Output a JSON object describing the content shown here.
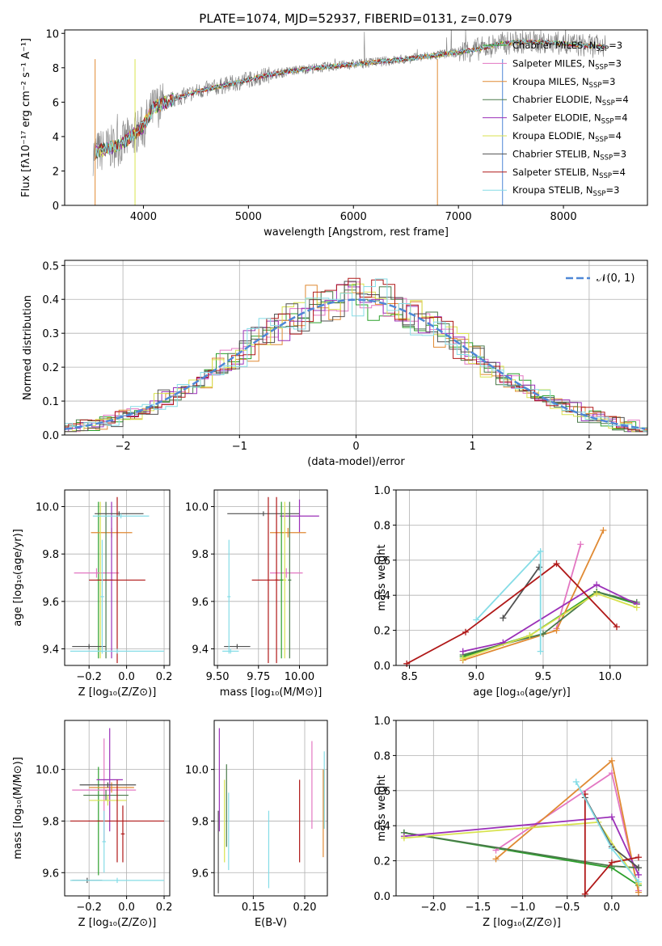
{
  "figure": {
    "title": "PLATE=1074, MJD=52937, FIBERID=0131, z=0.079",
    "colors": {
      "chabrier_miles": "#2ca02c",
      "salpeter_miles": "#e377c2",
      "kroupa_miles": "#e08a33",
      "chabrier_elodie": "#4a7a4a",
      "salpeter_elodie": "#9b30b8",
      "kroupa_elodie": "#d8e24f",
      "chabrier_stelib": "#505050",
      "salpeter_stelib": "#b01818",
      "kroupa_stelib": "#85dce6",
      "data": "#808080",
      "normal": "#4e87d6",
      "grid": "#b0b0b0"
    }
  },
  "chart_data": [
    {
      "id": "spectrum",
      "type": "line",
      "xlabel": "wavelength [Angstrom, rest frame]",
      "ylabel": "Flux [fλ10⁻¹⁷ erg cm⁻² s⁻¹ A⁻¹]",
      "xlim": [
        3250,
        8800
      ],
      "ylim": [
        0,
        10.2
      ],
      "xticks": [
        "4000",
        "5000",
        "6000",
        "7000",
        "8000"
      ],
      "yticks": [
        "0",
        "2",
        "4",
        "6",
        "8",
        "10"
      ],
      "grid": false,
      "legend_placement": "right",
      "continuum_x": [
        3520,
        3600,
        3800,
        4000,
        4100,
        4300,
        4500,
        5000,
        5200,
        5500,
        6000,
        6500,
        7000,
        7200,
        7400,
        7600,
        7800,
        8000,
        8200,
        8400
      ],
      "continuum_y": [
        3.0,
        3.2,
        3.6,
        4.6,
        5.7,
        6.2,
        6.6,
        7.3,
        7.6,
        7.9,
        8.2,
        8.5,
        8.9,
        9.1,
        9.4,
        9.5,
        9.5,
        9.4,
        9.3,
        9.2
      ],
      "legend": [
        {
          "name": "Chabrier MILES, N",
          "sub": "SSP",
          "suffix": "=3",
          "key": "chabrier_miles"
        },
        {
          "name": "Salpeter MILES, N",
          "sub": "SSP",
          "suffix": "=3",
          "key": "salpeter_miles"
        },
        {
          "name": "Kroupa MILES, N",
          "sub": "SSP",
          "suffix": "=3",
          "key": "kroupa_miles"
        },
        {
          "name": "Chabrier ELODIE, N",
          "sub": "SSP",
          "suffix": "=4",
          "key": "chabrier_elodie"
        },
        {
          "name": "Salpeter ELODIE, N",
          "sub": "SSP",
          "suffix": "=4",
          "key": "salpeter_elodie"
        },
        {
          "name": "Kroupa ELODIE, N",
          "sub": "SSP",
          "suffix": "=4",
          "key": "kroupa_elodie"
        },
        {
          "name": "Chabrier STELIB, N",
          "sub": "SSP",
          "suffix": "=3",
          "key": "chabrier_stelib"
        },
        {
          "name": "Salpeter STELIB, N",
          "sub": "SSP",
          "suffix": "=4",
          "key": "salpeter_stelib"
        },
        {
          "name": "Kroupa STELIB, N",
          "sub": "SSP",
          "suffix": "=3",
          "key": "kroupa_stelib"
        }
      ]
    },
    {
      "id": "residuals",
      "type": "line",
      "xlabel": "(data-model)/error",
      "ylabel": "Normed distribution",
      "xlim": [
        -2.5,
        2.5
      ],
      "ylim": [
        0,
        0.515
      ],
      "xticks": [
        "−2",
        "−1",
        "0",
        "1",
        "2"
      ],
      "yticks": [
        "0.0",
        "0.1",
        "0.2",
        "0.3",
        "0.4",
        "0.5"
      ],
      "grid": true,
      "legend_placement": "top-right",
      "legend_label": "𝒩(0, 1)",
      "normal": {
        "mean": 0,
        "sigma": 1
      }
    },
    {
      "id": "age_vs_Z",
      "type": "scatter",
      "xlabel": "Z [log₁₀(Z/Z⊙)]",
      "ylabel": "age  [log₁₀(age/yr)]",
      "xlim": [
        -0.33,
        0.23
      ],
      "ylim": [
        9.33,
        10.07
      ],
      "xticks": [
        "−0.2",
        "0.0",
        "0.2"
      ],
      "xtick_values": [
        -0.2,
        0.0,
        0.2
      ],
      "yticks": [
        "9.4",
        "9.6",
        "9.8",
        "10.0"
      ],
      "ytick_values": [
        9.4,
        9.6,
        9.8,
        10.0
      ],
      "grid": true,
      "points": [
        {
          "key": "chabrier_miles",
          "x": -0.15,
          "y": 9.69,
          "xe": 0.01,
          "ye": 0.33
        },
        {
          "key": "salpeter_miles",
          "x": -0.16,
          "y": 9.72,
          "xe": 0.12,
          "ye": 0.02
        },
        {
          "key": "kroupa_miles",
          "x": -0.08,
          "y": 9.89,
          "xe": 0.11,
          "ye": 0.02
        },
        {
          "key": "chabrier_elodie",
          "x": -0.11,
          "y": 9.69,
          "xe": 0.02,
          "ye": 0.33
        },
        {
          "key": "salpeter_elodie",
          "x": -0.08,
          "y": 9.69,
          "xe": 0.01,
          "ye": 0.33
        },
        {
          "key": "kroupa_elodie",
          "x": -0.14,
          "y": 9.69,
          "xe": 0.01,
          "ye": 0.33
        },
        {
          "key": "chabrier_stelib",
          "x": -0.04,
          "y": 9.97,
          "xe": 0.13,
          "ye": 0.01
        },
        {
          "key": "salpeter_stelib",
          "x": -0.05,
          "y": 9.69,
          "xe": 0.15,
          "ye": 0.35
        },
        {
          "key": "kroupa_stelib",
          "x": -0.05,
          "y": 9.39,
          "xe": 0.25,
          "ye": 0.01
        },
        {
          "key": "chabrier_stelib",
          "x": -0.2,
          "y": 9.41,
          "xe": 0.09,
          "ye": 0.01
        },
        {
          "key": "kroupa_stelib",
          "x": -0.03,
          "y": 9.96,
          "xe": 0.15,
          "ye": 0.01
        },
        {
          "key": "kroupa_stelib",
          "x": -0.13,
          "y": 9.62,
          "xe": 0.01,
          "ye": 0.24
        }
      ]
    },
    {
      "id": "age_vs_mass",
      "type": "scatter",
      "xlabel": "mass [log₁₀(M/M⊙)]",
      "ylabel": "",
      "xlim": [
        9.48,
        10.17
      ],
      "ylim": [
        9.33,
        10.07
      ],
      "xticks": [
        "9.50",
        "9.75",
        "10.00"
      ],
      "xtick_values": [
        9.5,
        9.75,
        10.0
      ],
      "yticks": [
        "9.4",
        "9.6",
        "9.8",
        "10.0"
      ],
      "ytick_values": [
        9.4,
        9.6,
        9.8,
        10.0
      ],
      "grid": true,
      "points": [
        {
          "key": "chabrier_stelib",
          "x": 9.78,
          "y": 9.97,
          "xe": 0.22,
          "ye": 0.01
        },
        {
          "key": "salpeter_elodie",
          "x": 10.0,
          "y": 9.96,
          "xe": 0.12,
          "ye": 0.07
        },
        {
          "key": "kroupa_miles",
          "x": 9.93,
          "y": 9.89,
          "xe": 0.11,
          "ye": 0.02
        },
        {
          "key": "salpeter_miles",
          "x": 9.92,
          "y": 9.72,
          "xe": 0.1,
          "ye": 0.02
        },
        {
          "key": "salpeter_stelib",
          "x": 9.81,
          "y": 9.69,
          "xe": 0.1,
          "ye": 0.35
        },
        {
          "key": "chabrier_miles",
          "x": 9.89,
          "y": 9.69,
          "xe": 0.01,
          "ye": 0.33
        },
        {
          "key": "kroupa_elodie",
          "x": 9.91,
          "y": 9.69,
          "xe": 0.01,
          "ye": 0.33
        },
        {
          "key": "chabrier_elodie",
          "x": 9.94,
          "y": 9.69,
          "xe": 0.01,
          "ye": 0.33
        },
        {
          "key": "chabrier_stelib",
          "x": 9.62,
          "y": 9.41,
          "xe": 0.08,
          "ye": 0.01
        },
        {
          "key": "kroupa_stelib",
          "x": 9.58,
          "y": 9.39,
          "xe": 0.05,
          "ye": 0.01
        },
        {
          "key": "kroupa_stelib",
          "x": 9.57,
          "y": 9.62,
          "xe": 0.01,
          "ye": 0.24
        },
        {
          "key": "salpeter_stelib",
          "x": 9.86,
          "y": 9.69,
          "xe": 0.01,
          "ye": 0.35
        }
      ]
    },
    {
      "id": "weight_vs_age",
      "type": "line",
      "xlabel": "age  [log₁₀(age/yr)]",
      "ylabel": "mass weight",
      "xlim": [
        8.4,
        10.28
      ],
      "ylim": [
        0,
        1.0
      ],
      "xticks": [
        "8.5",
        "9.0",
        "9.5",
        "10.0"
      ],
      "xtick_values": [
        8.5,
        9.0,
        9.5,
        10.0
      ],
      "yticks": [
        "0.0",
        "0.2",
        "0.4",
        "0.6",
        "0.8",
        "1.0"
      ],
      "ytick_values": [
        0,
        0.2,
        0.4,
        0.6,
        0.8,
        1.0
      ],
      "grid": true,
      "series": [
        {
          "key": "chabrier_miles",
          "x": [
            8.9,
            9.4,
            9.9,
            10.2
          ],
          "y": [
            0.05,
            0.17,
            0.42,
            0.35
          ]
        },
        {
          "key": "salpeter_miles",
          "x": [
            9.6,
            9.78
          ],
          "y": [
            0.21,
            0.69
          ]
        },
        {
          "key": "kroupa_miles",
          "x": [
            8.9,
            9.6,
            9.95
          ],
          "y": [
            0.03,
            0.2,
            0.77
          ]
        },
        {
          "key": "chabrier_elodie",
          "x": [
            8.9,
            9.5,
            9.9,
            10.2
          ],
          "y": [
            0.06,
            0.18,
            0.42,
            0.36
          ]
        },
        {
          "key": "salpeter_elodie",
          "x": [
            8.9,
            9.2,
            9.9,
            10.2
          ],
          "y": [
            0.08,
            0.13,
            0.46,
            0.35
          ]
        },
        {
          "key": "kroupa_elodie",
          "x": [
            8.9,
            9.4,
            9.9,
            10.2
          ],
          "y": [
            0.04,
            0.17,
            0.41,
            0.33
          ]
        },
        {
          "key": "chabrier_stelib",
          "x": [
            9.2,
            9.47
          ],
          "y": [
            0.27,
            0.56
          ]
        },
        {
          "key": "salpeter_stelib",
          "x": [
            8.48,
            8.92,
            9.6,
            10.05
          ],
          "y": [
            0.01,
            0.19,
            0.58,
            0.22
          ]
        },
        {
          "key": "kroupa_stelib",
          "x": [
            9.0,
            9.48,
            9.48
          ],
          "y": [
            0.26,
            0.65,
            0.08
          ]
        }
      ]
    },
    {
      "id": "mass_vs_Z",
      "type": "scatter",
      "xlabel": "Z [log₁₀(Z/Z⊙)]",
      "ylabel": "mass [log₁₀(M/M⊙)]",
      "xlim": [
        -0.33,
        0.23
      ],
      "ylim": [
        9.51,
        10.19
      ],
      "xticks": [
        "−0.2",
        "0.0",
        "0.2"
      ],
      "xtick_values": [
        -0.2,
        0.0,
        0.2
      ],
      "yticks": [
        "9.6",
        "9.8",
        "10.0"
      ],
      "ytick_values": [
        9.6,
        9.8,
        10.0
      ],
      "grid": true,
      "points": [
        {
          "key": "chabrier_miles",
          "x": -0.15,
          "y": 9.8,
          "xe": 0.01,
          "ye": 0.21
        },
        {
          "key": "salpeter_miles",
          "x": -0.12,
          "y": 9.92,
          "xe": 0.17,
          "ye": 0.2
        },
        {
          "key": "kroupa_miles",
          "x": -0.08,
          "y": 9.93,
          "xe": 0.12,
          "ye": 0.02
        },
        {
          "key": "chabrier_elodie",
          "x": -0.11,
          "y": 9.9,
          "xe": 0.12,
          "ye": 0.02
        },
        {
          "key": "salpeter_elodie",
          "x": -0.09,
          "y": 9.96,
          "xe": 0.07,
          "ye": 0.2
        },
        {
          "key": "kroupa_elodie",
          "x": -0.1,
          "y": 9.88,
          "xe": 0.1,
          "ye": 0.02
        },
        {
          "key": "chabrier_stelib",
          "x": -0.21,
          "y": 9.57,
          "xe": 0.08,
          "ye": 0.01
        },
        {
          "key": "salpeter_stelib",
          "x": -0.05,
          "y": 9.8,
          "xe": 0.25,
          "ye": 0.16
        },
        {
          "key": "kroupa_stelib",
          "x": -0.05,
          "y": 9.57,
          "xe": 0.25,
          "ye": 0.01
        },
        {
          "key": "chabrier_stelib",
          "x": -0.1,
          "y": 9.94,
          "xe": 0.15,
          "ye": 0.01
        },
        {
          "key": "kroupa_stelib",
          "x": -0.12,
          "y": 9.72,
          "xe": 0.01,
          "ye": 0.12
        },
        {
          "key": "salpeter_stelib",
          "x": -0.02,
          "y": 9.75,
          "xe": 0.01,
          "ye": 0.11
        }
      ]
    },
    {
      "id": "mass_vs_ebv",
      "type": "scatter",
      "xlabel": "E(B-V)",
      "ylabel": "",
      "xlim": [
        0.112,
        0.222
      ],
      "ylim": [
        9.51,
        10.19
      ],
      "xticks": [
        "0.15",
        "0.20"
      ],
      "xtick_values": [
        0.15,
        0.2
      ],
      "yticks": [
        "9.6",
        "9.8",
        "10.0"
      ],
      "ytick_values": [
        9.6,
        9.8,
        10.0
      ],
      "grid": true,
      "points": [
        {
          "key": "chabrier_stelib",
          "x": 0.116,
          "y": 9.68,
          "xe": 0,
          "ye": 0.16
        },
        {
          "key": "salpeter_elodie",
          "x": 0.117,
          "y": 9.96,
          "xe": 0,
          "ye": 0.2
        },
        {
          "key": "kroupa_elodie",
          "x": 0.122,
          "y": 9.8,
          "xe": 0,
          "ye": 0.16
        },
        {
          "key": "chabrier_elodie",
          "x": 0.124,
          "y": 9.86,
          "xe": 0,
          "ye": 0.16
        },
        {
          "key": "kroupa_stelib",
          "x": 0.126,
          "y": 9.76,
          "xe": 0,
          "ye": 0.15
        },
        {
          "key": "kroupa_stelib",
          "x": 0.165,
          "y": 9.69,
          "xe": 0,
          "ye": 0.15
        },
        {
          "key": "salpeter_stelib",
          "x": 0.195,
          "y": 9.8,
          "xe": 0,
          "ye": 0.16
        },
        {
          "key": "salpeter_miles",
          "x": 0.207,
          "y": 9.94,
          "xe": 0,
          "ye": 0.17
        },
        {
          "key": "kroupa_miles",
          "x": 0.218,
          "y": 9.83,
          "xe": 0,
          "ye": 0.17
        },
        {
          "key": "kroupa_stelib",
          "x": 0.219,
          "y": 9.92,
          "xe": 0,
          "ye": 0.15
        }
      ]
    },
    {
      "id": "weight_vs_Z",
      "type": "line",
      "xlabel": "Z [log₁₀(Z/Z⊙)]",
      "ylabel": "mass weight",
      "xlim": [
        -2.42,
        0.4
      ],
      "ylim": [
        0,
        1.0
      ],
      "xticks": [
        "−2.0",
        "−1.5",
        "−1.0",
        "−0.5",
        "0.0"
      ],
      "xtick_values": [
        -2.0,
        -1.5,
        -1.0,
        -0.5,
        0.0
      ],
      "yticks": [
        "0.0",
        "0.2",
        "0.4",
        "0.6",
        "0.8",
        "1.0"
      ],
      "ytick_values": [
        0,
        0.2,
        0.4,
        0.6,
        0.8,
        1.0
      ],
      "grid": true,
      "series": [
        {
          "key": "chabrier_miles",
          "x": [
            -2.33,
            0.0,
            0.3
          ],
          "y": [
            0.36,
            0.16,
            0.06
          ]
        },
        {
          "key": "salpeter_miles",
          "x": [
            -1.3,
            0.0,
            0.3
          ],
          "y": [
            0.26,
            0.7,
            0.03
          ]
        },
        {
          "key": "kroupa_miles",
          "x": [
            -1.3,
            0.0,
            0.3
          ],
          "y": [
            0.21,
            0.77,
            0.02
          ]
        },
        {
          "key": "chabrier_elodie",
          "x": [
            -2.33,
            0.0,
            0.3
          ],
          "y": [
            0.36,
            0.17,
            0.16
          ]
        },
        {
          "key": "salpeter_elodie",
          "x": [
            -2.33,
            0.0,
            0.3
          ],
          "y": [
            0.34,
            0.45,
            0.12
          ]
        },
        {
          "key": "kroupa_elodie",
          "x": [
            -2.33,
            -0.15,
            0.3
          ],
          "y": [
            0.33,
            0.42,
            0.07
          ]
        },
        {
          "key": "chabrier_stelib",
          "x": [
            -0.3,
            0.0,
            0.3
          ],
          "y": [
            0.56,
            0.28,
            0.16
          ]
        },
        {
          "key": "salpeter_stelib",
          "x": [
            -0.3,
            -0.3,
            0.0,
            0.3
          ],
          "y": [
            0.58,
            0.01,
            0.19,
            0.22
          ]
        },
        {
          "key": "kroupa_stelib",
          "x": [
            -0.4,
            0.0,
            0.3
          ],
          "y": [
            0.65,
            0.27,
            0.08
          ]
        }
      ]
    }
  ]
}
